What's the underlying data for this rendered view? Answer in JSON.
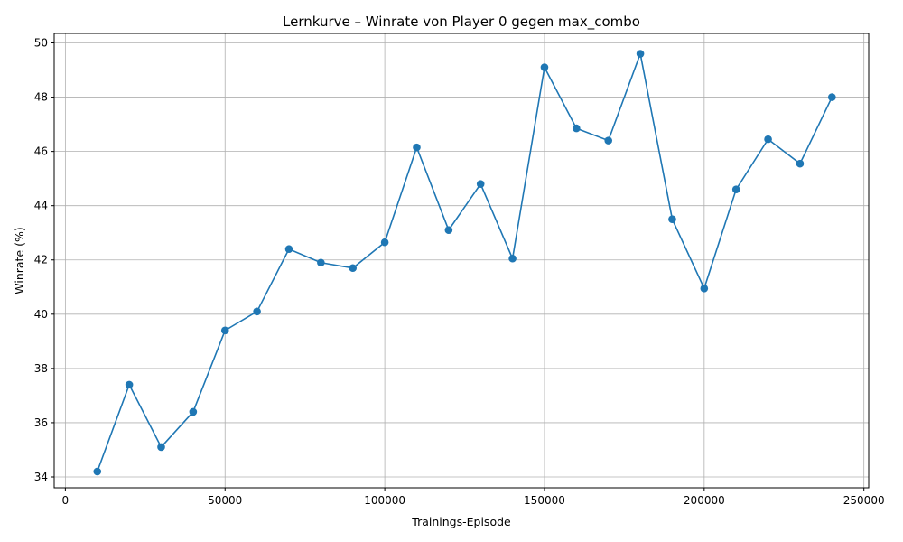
{
  "chart_data": {
    "type": "line",
    "title": "Lernkurve – Winrate von Player 0 gegen max_combo",
    "xlabel": "Trainings-Episode",
    "ylabel": "Winrate (%)",
    "xlim": [
      -3500,
      251500
    ],
    "ylim": [
      33.6,
      50.35
    ],
    "xticks": [
      0,
      50000,
      100000,
      150000,
      200000,
      250000
    ],
    "yticks": [
      34,
      36,
      38,
      40,
      42,
      44,
      46,
      48,
      50
    ],
    "grid": true,
    "marker": "circle",
    "color": "#1f77b4",
    "series": [
      {
        "x": [
          10000,
          20000,
          30000,
          40000,
          50000,
          60000,
          70000,
          80000,
          90000,
          100000,
          110000,
          120000,
          130000,
          140000,
          150000,
          160000,
          170000,
          180000,
          190000,
          200000,
          210000,
          220000,
          230000,
          240000
        ],
        "y": [
          34.2,
          37.4,
          35.1,
          36.4,
          39.4,
          40.1,
          42.4,
          41.9,
          41.7,
          42.65,
          46.15,
          43.1,
          44.8,
          42.05,
          49.1,
          46.85,
          46.4,
          49.6,
          43.5,
          40.95,
          44.6,
          46.45,
          45.55,
          48.0
        ]
      }
    ]
  }
}
